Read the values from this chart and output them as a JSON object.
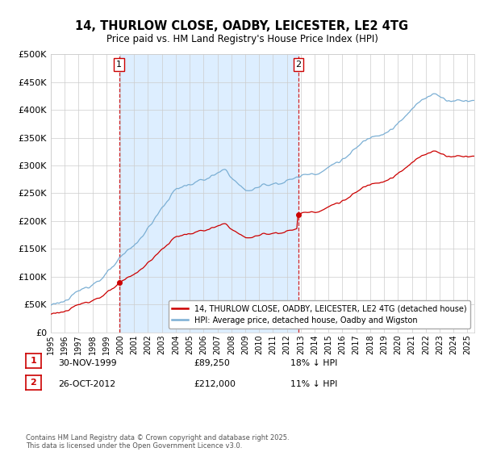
{
  "title": "14, THURLOW CLOSE, OADBY, LEICESTER, LE2 4TG",
  "subtitle": "Price paid vs. HM Land Registry's House Price Index (HPI)",
  "ylim": [
    0,
    500000
  ],
  "yticks": [
    0,
    50000,
    100000,
    150000,
    200000,
    250000,
    300000,
    350000,
    400000,
    450000,
    500000
  ],
  "ytick_labels": [
    "£0",
    "£50K",
    "£100K",
    "£150K",
    "£200K",
    "£250K",
    "£300K",
    "£350K",
    "£400K",
    "£450K",
    "£500K"
  ],
  "hpi_color": "#7bafd4",
  "price_color": "#cc0000",
  "vline_color": "#cc0000",
  "shade_color": "#ddeeff",
  "background_color": "#ffffff",
  "grid_color": "#cccccc",
  "purchase1_date": 1999.92,
  "purchase1_price": 89250,
  "purchase1_label": "1",
  "purchase2_date": 2012.83,
  "purchase2_price": 212000,
  "purchase2_label": "2",
  "legend_line1": "14, THURLOW CLOSE, OADBY, LEICESTER, LE2 4TG (detached house)",
  "legend_line2": "HPI: Average price, detached house, Oadby and Wigston",
  "footnote": "Contains HM Land Registry data © Crown copyright and database right 2025.\nThis data is licensed under the Open Government Licence v3.0.",
  "xlim_start": 1995.0,
  "xlim_end": 2025.5,
  "table_1_date": "30-NOV-1999",
  "table_1_price": "£89,250",
  "table_1_pct": "18% ↓ HPI",
  "table_2_date": "26-OCT-2012",
  "table_2_price": "£212,000",
  "table_2_pct": "11% ↓ HPI"
}
